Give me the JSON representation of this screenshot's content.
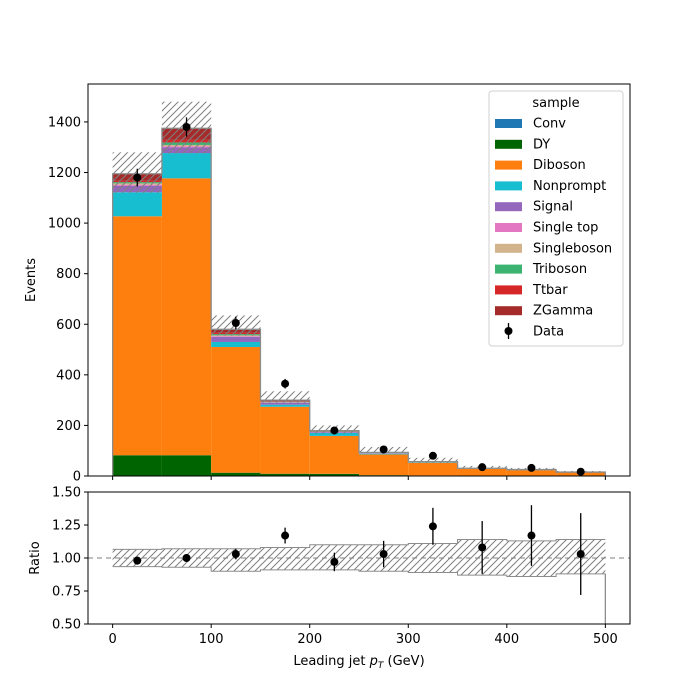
{
  "chart_data": [
    {
      "type": "bar",
      "stacked": true,
      "panel": "main",
      "bin_edges": [
        0,
        50,
        100,
        150,
        200,
        250,
        300,
        350,
        400,
        450,
        500
      ],
      "xlim": [
        -25,
        525
      ],
      "ylim": [
        0,
        1550
      ],
      "yticks": [
        0,
        200,
        400,
        600,
        800,
        1000,
        1200,
        1400
      ],
      "xticks": [
        0,
        100,
        200,
        300,
        400,
        500
      ],
      "ylabel": "Events",
      "legend_title": "sample",
      "legend_position": "top-right",
      "series": [
        {
          "name": "Conv",
          "color": "#1f77b4",
          "values": [
            2,
            2,
            1,
            1,
            0.5,
            0.3,
            0.2,
            0.1,
            0.1,
            0.1
          ]
        },
        {
          "name": "DY",
          "color": "#006400",
          "values": [
            80,
            80,
            12,
            8,
            8,
            3,
            2,
            1,
            1,
            1
          ]
        },
        {
          "name": "Diboson",
          "color": "#ff7f0e",
          "values": [
            945,
            1095,
            497,
            265,
            150,
            82,
            50,
            27,
            22,
            13
          ]
        },
        {
          "name": "Nonprompt",
          "color": "#17becf",
          "values": [
            95,
            100,
            20,
            8,
            12,
            3,
            1.5,
            1,
            1,
            0.5
          ]
        },
        {
          "name": "Signal",
          "color": "#9467bd",
          "values": [
            25,
            22,
            20,
            8,
            3,
            2,
            1,
            0.5,
            0.5,
            0.3
          ]
        },
        {
          "name": "Single top",
          "color": "#e377c2",
          "values": [
            5,
            5,
            3,
            1,
            0.5,
            0.3,
            0.2,
            0.1,
            0.1,
            0.1
          ]
        },
        {
          "name": "Singleboson",
          "color": "#d2b48c",
          "values": [
            5,
            5,
            3,
            1,
            0.5,
            0.3,
            0.2,
            0.1,
            0.1,
            0.1
          ]
        },
        {
          "name": "Triboson",
          "color": "#3cb371",
          "values": [
            5,
            10,
            5,
            2,
            1,
            0.5,
            0.3,
            0.2,
            0.1,
            0.1
          ]
        },
        {
          "name": "Ttbar",
          "color": "#d62728",
          "values": [
            5,
            10,
            5,
            2,
            1,
            0.5,
            0.3,
            0.2,
            0.1,
            0.1
          ]
        },
        {
          "name": "ZGamma",
          "color": "#a52a2a",
          "values": [
            28,
            46,
            14,
            4,
            3,
            1.5,
            1,
            0.5,
            0.4,
            0.2
          ]
        }
      ],
      "uncertainty": {
        "up": [
          1280,
          1480,
          635,
          335,
          200,
          115,
          72,
          40,
          32,
          20
        ],
        "down": [
          1120,
          1275,
          555,
          290,
          168,
          94,
          52,
          29,
          22,
          11
        ]
      },
      "data": {
        "name": "Data",
        "color": "#000000",
        "x": [
          25,
          75,
          125,
          175,
          225,
          275,
          325,
          375,
          425,
          475
        ],
        "y": [
          1180,
          1380,
          605,
          365,
          180,
          105,
          80,
          35,
          32,
          17
        ],
        "err": [
          35,
          38,
          25,
          19,
          13,
          10,
          9,
          6,
          6,
          4
        ]
      }
    },
    {
      "type": "scatter",
      "panel": "ratio",
      "bin_edges": [
        0,
        50,
        100,
        150,
        200,
        250,
        300,
        350,
        400,
        450,
        500
      ],
      "xlim": [
        -25,
        525
      ],
      "ylim": [
        0.5,
        1.5
      ],
      "yticks": [
        "0.50",
        "0.75",
        "1.00",
        "1.25",
        "1.50"
      ],
      "xticks": [
        "0",
        "100",
        "200",
        "300",
        "400",
        "500"
      ],
      "xlabel_main": "Leading jet  ",
      "xlabel_math": "p",
      "xlabel_sub": "T",
      "xlabel_unit": " (GeV)",
      "ylabel": "Ratio",
      "reference_line": 1.0,
      "band": {
        "up": [
          1.065,
          1.07,
          1.07,
          1.08,
          1.1,
          1.1,
          1.11,
          1.14,
          1.13,
          1.14
        ],
        "down": [
          0.935,
          0.93,
          0.9,
          0.91,
          0.91,
          0.9,
          0.89,
          0.87,
          0.86,
          0.88
        ]
      },
      "points": {
        "x": [
          25,
          75,
          125,
          175,
          225,
          275,
          325,
          375,
          425,
          475
        ],
        "y": [
          0.98,
          1.0,
          1.03,
          1.17,
          0.97,
          1.03,
          1.24,
          1.08,
          1.17,
          1.03
        ],
        "err": [
          0.03,
          0.03,
          0.04,
          0.06,
          0.07,
          0.1,
          0.14,
          0.2,
          0.23,
          0.31
        ]
      }
    }
  ]
}
